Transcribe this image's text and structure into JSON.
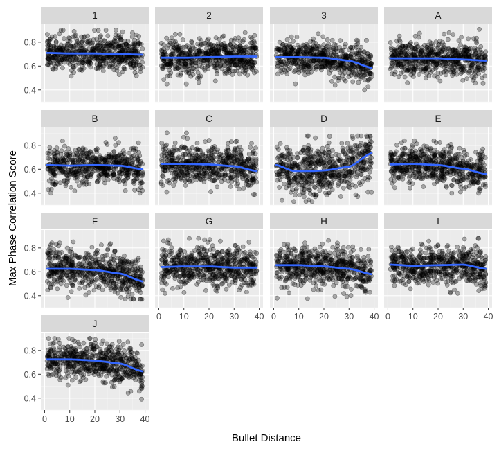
{
  "chart_data": {
    "type": "scatter",
    "xlabel": "Bullet Distance",
    "ylabel": "Max Phase Correlation Score",
    "xlim": [
      -1.5,
      41.5
    ],
    "ylim": [
      0.3,
      0.95
    ],
    "x_ticks": [
      0,
      10,
      20,
      30,
      40
    ],
    "y_ticks": [
      0.4,
      0.6,
      0.8
    ],
    "x_tick_labels": [
      "0",
      "10",
      "20",
      "30",
      "40"
    ],
    "y_tick_labels": [
      "0.4",
      "0.6",
      "0.8"
    ],
    "grid": true,
    "smooth_color": "#3366ff",
    "point_color": "#000000",
    "point_alpha": 0.3,
    "points_per_panel": 600,
    "panels": [
      {
        "label": "1",
        "x_range": [
          1,
          39
        ],
        "y_range": [
          0.38,
          0.9
        ],
        "spread": 0.075,
        "smooth": [
          [
            1,
            0.71
          ],
          [
            10,
            0.705
          ],
          [
            20,
            0.705
          ],
          [
            30,
            0.7
          ],
          [
            39,
            0.695
          ]
        ]
      },
      {
        "label": "2",
        "x_range": [
          1,
          39
        ],
        "y_range": [
          0.45,
          0.88
        ],
        "spread": 0.075,
        "smooth": [
          [
            1,
            0.67
          ],
          [
            10,
            0.67
          ],
          [
            20,
            0.675
          ],
          [
            30,
            0.68
          ],
          [
            39,
            0.68
          ]
        ]
      },
      {
        "label": "3",
        "x_range": [
          1,
          39
        ],
        "y_range": [
          0.4,
          0.88
        ],
        "spread": 0.075,
        "smooth": [
          [
            1,
            0.675
          ],
          [
            10,
            0.675
          ],
          [
            20,
            0.67
          ],
          [
            30,
            0.645
          ],
          [
            39,
            0.585
          ]
        ]
      },
      {
        "label": "A",
        "x_range": [
          1,
          39
        ],
        "y_range": [
          0.4,
          0.93
        ],
        "spread": 0.075,
        "smooth": [
          [
            1,
            0.665
          ],
          [
            10,
            0.665
          ],
          [
            20,
            0.665
          ],
          [
            30,
            0.655
          ],
          [
            39,
            0.645
          ]
        ]
      },
      {
        "label": "B",
        "x_range": [
          1,
          39
        ],
        "y_range": [
          0.4,
          0.88
        ],
        "spread": 0.08,
        "smooth": [
          [
            1,
            0.635
          ],
          [
            10,
            0.63
          ],
          [
            20,
            0.635
          ],
          [
            30,
            0.63
          ],
          [
            39,
            0.6
          ]
        ]
      },
      {
        "label": "C",
        "x_range": [
          1,
          39
        ],
        "y_range": [
          0.38,
          0.92
        ],
        "spread": 0.08,
        "smooth": [
          [
            1,
            0.645
          ],
          [
            10,
            0.645
          ],
          [
            20,
            0.64
          ],
          [
            30,
            0.625
          ],
          [
            39,
            0.585
          ]
        ]
      },
      {
        "label": "D",
        "x_range": [
          1,
          39
        ],
        "y_range": [
          0.33,
          0.88
        ],
        "spread": 0.11,
        "smooth": [
          [
            1,
            0.635
          ],
          [
            8,
            0.585
          ],
          [
            15,
            0.585
          ],
          [
            20,
            0.59
          ],
          [
            30,
            0.62
          ],
          [
            39,
            0.735
          ]
        ]
      },
      {
        "label": "E",
        "x_range": [
          1,
          39
        ],
        "y_range": [
          0.4,
          0.88
        ],
        "spread": 0.08,
        "smooth": [
          [
            1,
            0.64
          ],
          [
            10,
            0.645
          ],
          [
            20,
            0.635
          ],
          [
            30,
            0.605
          ],
          [
            39,
            0.56
          ]
        ]
      },
      {
        "label": "F",
        "x_range": [
          1,
          39
        ],
        "y_range": [
          0.37,
          0.88
        ],
        "spread": 0.085,
        "smooth": [
          [
            1,
            0.625
          ],
          [
            10,
            0.625
          ],
          [
            20,
            0.615
          ],
          [
            30,
            0.585
          ],
          [
            39,
            0.52
          ]
        ]
      },
      {
        "label": "G",
        "x_range": [
          1,
          39
        ],
        "y_range": [
          0.38,
          0.88
        ],
        "spread": 0.085,
        "smooth": [
          [
            1,
            0.64
          ],
          [
            10,
            0.645
          ],
          [
            20,
            0.645
          ],
          [
            30,
            0.635
          ],
          [
            39,
            0.635
          ]
        ]
      },
      {
        "label": "H",
        "x_range": [
          1,
          39
        ],
        "y_range": [
          0.37,
          0.88
        ],
        "spread": 0.085,
        "smooth": [
          [
            1,
            0.655
          ],
          [
            10,
            0.655
          ],
          [
            20,
            0.645
          ],
          [
            30,
            0.625
          ],
          [
            39,
            0.58
          ]
        ]
      },
      {
        "label": "I",
        "x_range": [
          1,
          39
        ],
        "y_range": [
          0.42,
          0.88
        ],
        "spread": 0.08,
        "smooth": [
          [
            1,
            0.66
          ],
          [
            10,
            0.65
          ],
          [
            20,
            0.655
          ],
          [
            30,
            0.66
          ],
          [
            39,
            0.625
          ]
        ]
      },
      {
        "label": "J",
        "x_range": [
          1,
          39
        ],
        "y_range": [
          0.37,
          0.9
        ],
        "spread": 0.085,
        "smooth": [
          [
            1,
            0.725
          ],
          [
            10,
            0.725
          ],
          [
            20,
            0.715
          ],
          [
            30,
            0.69
          ],
          [
            39,
            0.625
          ]
        ]
      }
    ]
  }
}
